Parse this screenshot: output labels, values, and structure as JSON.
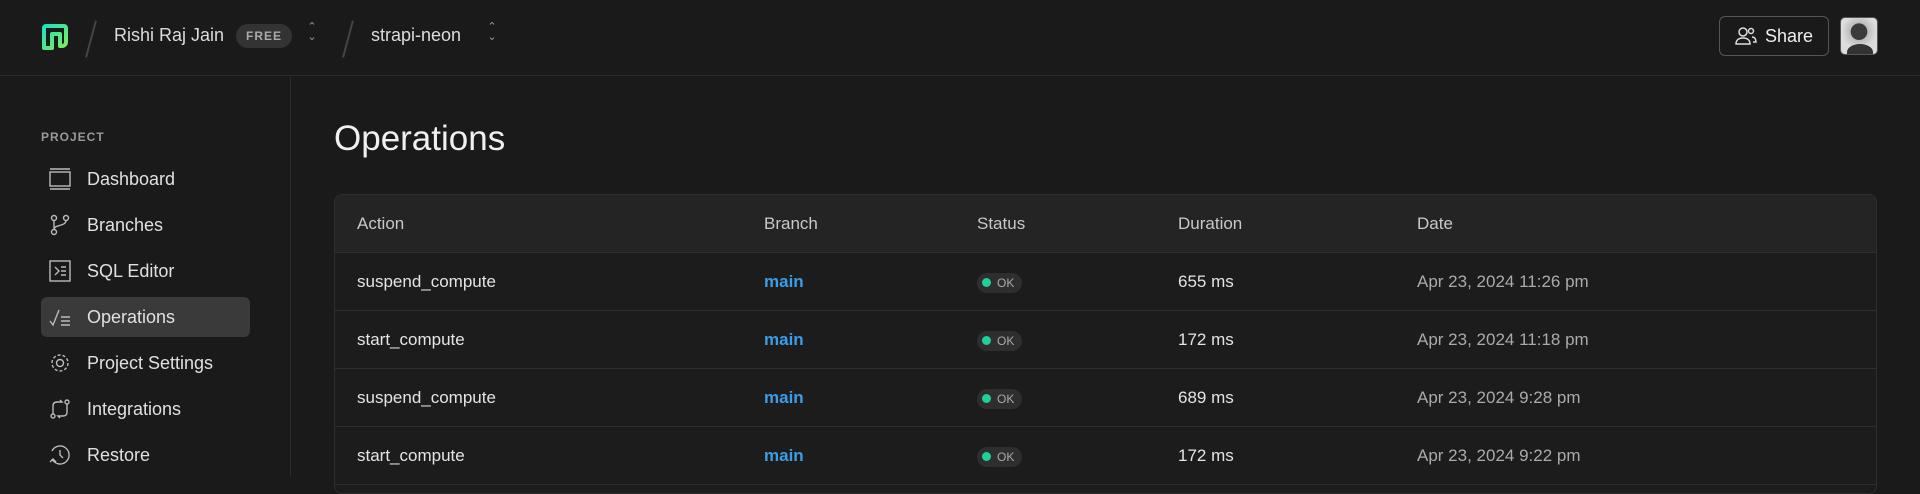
{
  "header": {
    "org": "Rishi Raj Jain",
    "plan_badge": "FREE",
    "project": "strapi-neon",
    "share_label": "Share"
  },
  "sidebar": {
    "section": "PROJECT",
    "items": [
      {
        "label": "Dashboard",
        "icon": "dashboard-icon"
      },
      {
        "label": "Branches",
        "icon": "branch-icon"
      },
      {
        "label": "SQL Editor",
        "icon": "terminal-icon"
      },
      {
        "label": "Operations",
        "icon": "operations-icon",
        "active": true
      },
      {
        "label": "Project Settings",
        "icon": "gear-icon"
      },
      {
        "label": "Integrations",
        "icon": "integrations-icon"
      },
      {
        "label": "Restore",
        "icon": "restore-icon"
      }
    ]
  },
  "main": {
    "title": "Operations",
    "columns": [
      "Action",
      "Branch",
      "Status",
      "Duration",
      "Date"
    ],
    "rows": [
      {
        "action": "suspend_compute",
        "branch": "main",
        "status": "OK",
        "duration": "655 ms",
        "date": "Apr 23, 2024 11:26 pm"
      },
      {
        "action": "start_compute",
        "branch": "main",
        "status": "OK",
        "duration": "172 ms",
        "date": "Apr 23, 2024 11:18 pm"
      },
      {
        "action": "suspend_compute",
        "branch": "main",
        "status": "OK",
        "duration": "689 ms",
        "date": "Apr 23, 2024 9:28 pm"
      },
      {
        "action": "start_compute",
        "branch": "main",
        "status": "OK",
        "duration": "172 ms",
        "date": "Apr 23, 2024 9:22 pm"
      }
    ]
  },
  "colors": {
    "accent": "#3b9de8",
    "ok": "#1ed19a",
    "logo": "#2de0a0"
  }
}
